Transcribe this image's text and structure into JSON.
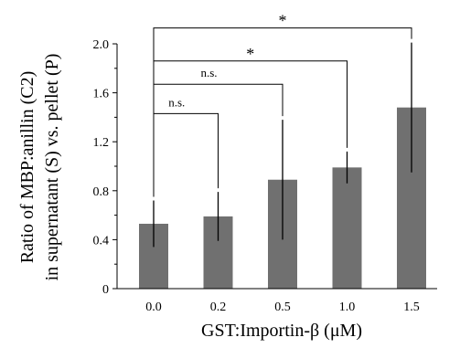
{
  "chart_data": {
    "type": "bar",
    "categories": [
      "0.0",
      "0.2",
      "0.5",
      "1.0",
      "1.5"
    ],
    "values": [
      0.53,
      0.59,
      0.89,
      0.99,
      1.48
    ],
    "errors": [
      0.19,
      0.2,
      0.49,
      0.13,
      0.53
    ],
    "xlabel": "GST:Importin-β (μM)",
    "ylabel_line1": "Ratio of MBP:anillin (C2)",
    "ylabel_line2": "in supernatant (S) vs. pellet (P)",
    "ylim": [
      0,
      2.0
    ],
    "yticks": [
      "0",
      "0.4",
      "0.8",
      "1.2",
      "1.6",
      "2.0"
    ],
    "ytick_values": [
      0,
      0.4,
      0.8,
      1.2,
      1.6,
      2.0
    ],
    "bar_color": "#707070",
    "grid": false,
    "significance": [
      {
        "from": 0,
        "to": 1,
        "label": "n.s.",
        "height": 1.43
      },
      {
        "from": 0,
        "to": 2,
        "label": "n.s.",
        "height": 1.67
      },
      {
        "from": 0,
        "to": 3,
        "label": "*",
        "height": 1.86
      },
      {
        "from": 0,
        "to": 4,
        "label": "*",
        "height": 2.13
      }
    ]
  }
}
